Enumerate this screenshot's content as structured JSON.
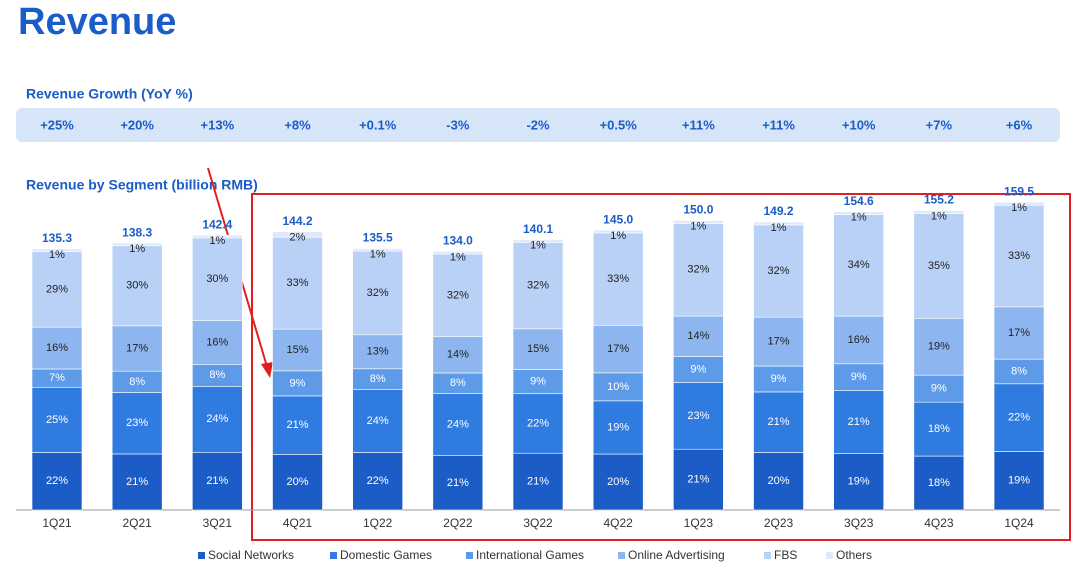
{
  "chart_data": {
    "type": "bar",
    "title": "Revenue",
    "growth_title": "Revenue Growth (YoY %)",
    "subtitle": "Revenue by Segment (billion RMB)",
    "categories": [
      "1Q21",
      "2Q21",
      "3Q21",
      "4Q21",
      "1Q22",
      "2Q22",
      "3Q22",
      "4Q22",
      "1Q23",
      "2Q23",
      "3Q23",
      "4Q23",
      "1Q24"
    ],
    "growth": {
      "values": [
        25,
        20,
        13,
        8,
        0.1,
        -3,
        -2,
        0.5,
        11,
        11,
        10,
        7,
        6
      ],
      "value_labels": [
        "+25%",
        "+20%",
        "+13%",
        "+8%",
        "+0.1%",
        "-3%",
        "-2%",
        "+0.5%",
        "+11%",
        "+11%",
        "+10%",
        "+7%",
        "+6%"
      ]
    },
    "totals": {
      "values": [
        135.3,
        138.3,
        142.4,
        144.2,
        135.5,
        134.0,
        140.1,
        145.0,
        150.0,
        149.2,
        154.6,
        155.2,
        159.5
      ],
      "value_labels": [
        "135.3",
        "138.3",
        "142.4",
        "144.2",
        "135.5",
        "134.0",
        "140.1",
        "145.0",
        "150.0",
        "149.2",
        "154.6",
        "155.2",
        "159.5"
      ]
    },
    "series": [
      {
        "name": "Social Networks",
        "color": "#1b5cc6",
        "values": [
          22,
          21,
          21,
          20,
          22,
          21,
          21,
          20,
          21,
          20,
          19,
          18,
          19
        ],
        "value_labels": [
          "22%",
          "21%",
          "21%",
          "20%",
          "22%",
          "21%",
          "21%",
          "20%",
          "21%",
          "20%",
          "19%",
          "18%",
          "19%"
        ]
      },
      {
        "name": "Domestic Games",
        "color": "#2f7be0",
        "values": [
          25,
          23,
          24,
          21,
          24,
          24,
          22,
          19,
          23,
          21,
          21,
          18,
          22
        ],
        "value_labels": [
          "25%",
          "23%",
          "24%",
          "21%",
          "24%",
          "24%",
          "22%",
          "19%",
          "23%",
          "21%",
          "21%",
          "18%",
          "22%"
        ]
      },
      {
        "name": "International Games",
        "color": "#5d9be9",
        "values": [
          7,
          8,
          8,
          9,
          8,
          8,
          9,
          10,
          9,
          9,
          9,
          9,
          8
        ],
        "value_labels": [
          "7%",
          "8%",
          "8%",
          "9%",
          "8%",
          "8%",
          "9%",
          "10%",
          "9%",
          "9%",
          "9%",
          "9%",
          "8%"
        ]
      },
      {
        "name": "Online Advertising",
        "color": "#8db6f0",
        "values": [
          16,
          17,
          16,
          15,
          13,
          14,
          15,
          17,
          14,
          17,
          16,
          19,
          17
        ],
        "value_labels": [
          "16%",
          "17%",
          "16%",
          "15%",
          "13%",
          "14%",
          "15%",
          "17%",
          "14%",
          "17%",
          "16%",
          "19%",
          "17%"
        ]
      },
      {
        "name": "FBS",
        "color": "#b9d1f7",
        "values": [
          29,
          30,
          30,
          33,
          32,
          32,
          32,
          33,
          32,
          32,
          34,
          35,
          33
        ],
        "value_labels": [
          "29%",
          "30%",
          "30%",
          "33%",
          "32%",
          "32%",
          "32%",
          "33%",
          "32%",
          "32%",
          "34%",
          "35%",
          "33%"
        ]
      },
      {
        "name": "Others",
        "color": "#dfe9fb",
        "values": [
          1,
          1,
          1,
          2,
          1,
          1,
          1,
          1,
          1,
          1,
          1,
          1,
          1
        ],
        "value_labels": [
          "1%",
          "1%",
          "1%",
          "2%",
          "1%",
          "1%",
          "1%",
          "1%",
          "1%",
          "1%",
          "1%",
          "1%",
          "1%"
        ]
      }
    ]
  }
}
